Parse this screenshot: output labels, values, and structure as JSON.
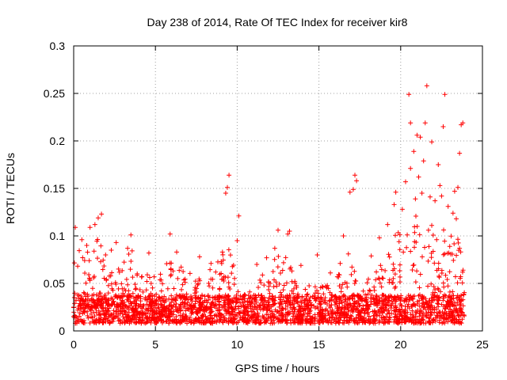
{
  "chart_data": {
    "type": "scatter",
    "title": "Day 238 of 2014, Rate Of TEC Index for receiver kir8",
    "xlabel": "GPS time / hours",
    "ylabel": "ROTI / TECUs",
    "xlim": [
      0,
      25
    ],
    "ylim": [
      0,
      0.3
    ],
    "grid": true,
    "marker": "+",
    "color": "#ff0000",
    "xticks": [
      0,
      5,
      10,
      15,
      20,
      25
    ],
    "xtick_labels": [
      "0",
      "5",
      "10",
      "15",
      "20",
      "25"
    ],
    "yticks": [
      0,
      0.05,
      0.1,
      0.15,
      0.2,
      0.25,
      0.3
    ],
    "ytick_labels": [
      "0",
      "0.05",
      "0.1",
      "0.15",
      "0.2",
      "0.25",
      "0.3"
    ],
    "series": [
      {
        "name": "ROTI",
        "points": [
          [
            20.5,
            0.249
          ],
          [
            21.6,
            0.258
          ],
          [
            22.7,
            0.249
          ],
          [
            20.6,
            0.219
          ],
          [
            21.5,
            0.219
          ],
          [
            22.6,
            0.215
          ],
          [
            23.8,
            0.219
          ],
          [
            23.7,
            0.217
          ],
          [
            21.0,
            0.206
          ],
          [
            21.2,
            0.204
          ],
          [
            21.9,
            0.199
          ],
          [
            20.8,
            0.189
          ],
          [
            23.6,
            0.187
          ],
          [
            9.5,
            0.164
          ],
          [
            17.2,
            0.164
          ],
          [
            17.3,
            0.158
          ],
          [
            20.6,
            0.171
          ],
          [
            21.4,
            0.179
          ],
          [
            22.3,
            0.175
          ],
          [
            9.4,
            0.151
          ],
          [
            9.3,
            0.145
          ],
          [
            17.1,
            0.149
          ],
          [
            16.9,
            0.146
          ],
          [
            19.7,
            0.146
          ],
          [
            23.5,
            0.151
          ],
          [
            10.1,
            0.121
          ],
          [
            1.7,
            0.123
          ],
          [
            1.5,
            0.119
          ],
          [
            3.5,
            0.101
          ],
          [
            5.9,
            0.102
          ],
          [
            12.5,
            0.106
          ],
          [
            13.2,
            0.105
          ],
          [
            13.1,
            0.102
          ],
          [
            10.0,
            0.095
          ],
          [
            14.9,
            0.08
          ],
          [
            16.5,
            0.1
          ],
          [
            16.8,
            0.081
          ],
          [
            0.1,
            0.109
          ],
          [
            1.3,
            0.112
          ],
          [
            1.0,
            0.109
          ],
          [
            2.6,
            0.093
          ],
          [
            3.3,
            0.087
          ],
          [
            9.1,
            0.083
          ],
          [
            0.5,
            0.096
          ],
          [
            0.8,
            0.09
          ],
          [
            2.3,
            0.085
          ],
          [
            4.6,
            0.082
          ],
          [
            6.3,
            0.083
          ],
          [
            7.7,
            0.078
          ],
          [
            8.4,
            0.071
          ],
          [
            11.2,
            0.07
          ],
          [
            11.8,
            0.077
          ],
          [
            12.3,
            0.087
          ],
          [
            13.9,
            0.069
          ],
          [
            15.7,
            0.061
          ],
          [
            16.3,
            0.071
          ],
          [
            18.2,
            0.079
          ],
          [
            18.7,
            0.098
          ],
          [
            19.2,
            0.112
          ],
          [
            19.6,
            0.133
          ],
          [
            20.1,
            0.128
          ],
          [
            20.9,
            0.139
          ],
          [
            21.3,
            0.145
          ],
          [
            21.8,
            0.141
          ],
          [
            22.1,
            0.137
          ],
          [
            22.5,
            0.142
          ],
          [
            22.9,
            0.131
          ],
          [
            23.2,
            0.124
          ],
          [
            23.4,
            0.118
          ],
          [
            20.3,
            0.157
          ],
          [
            21.1,
            0.162
          ],
          [
            22.4,
            0.153
          ],
          [
            23.3,
            0.147
          ],
          [
            19.9,
            0.094
          ],
          [
            20.4,
            0.101
          ],
          [
            21.7,
            0.106
          ],
          [
            22.2,
            0.096
          ],
          [
            23.0,
            0.089
          ],
          [
            23.6,
            0.087
          ]
        ]
      }
    ]
  }
}
